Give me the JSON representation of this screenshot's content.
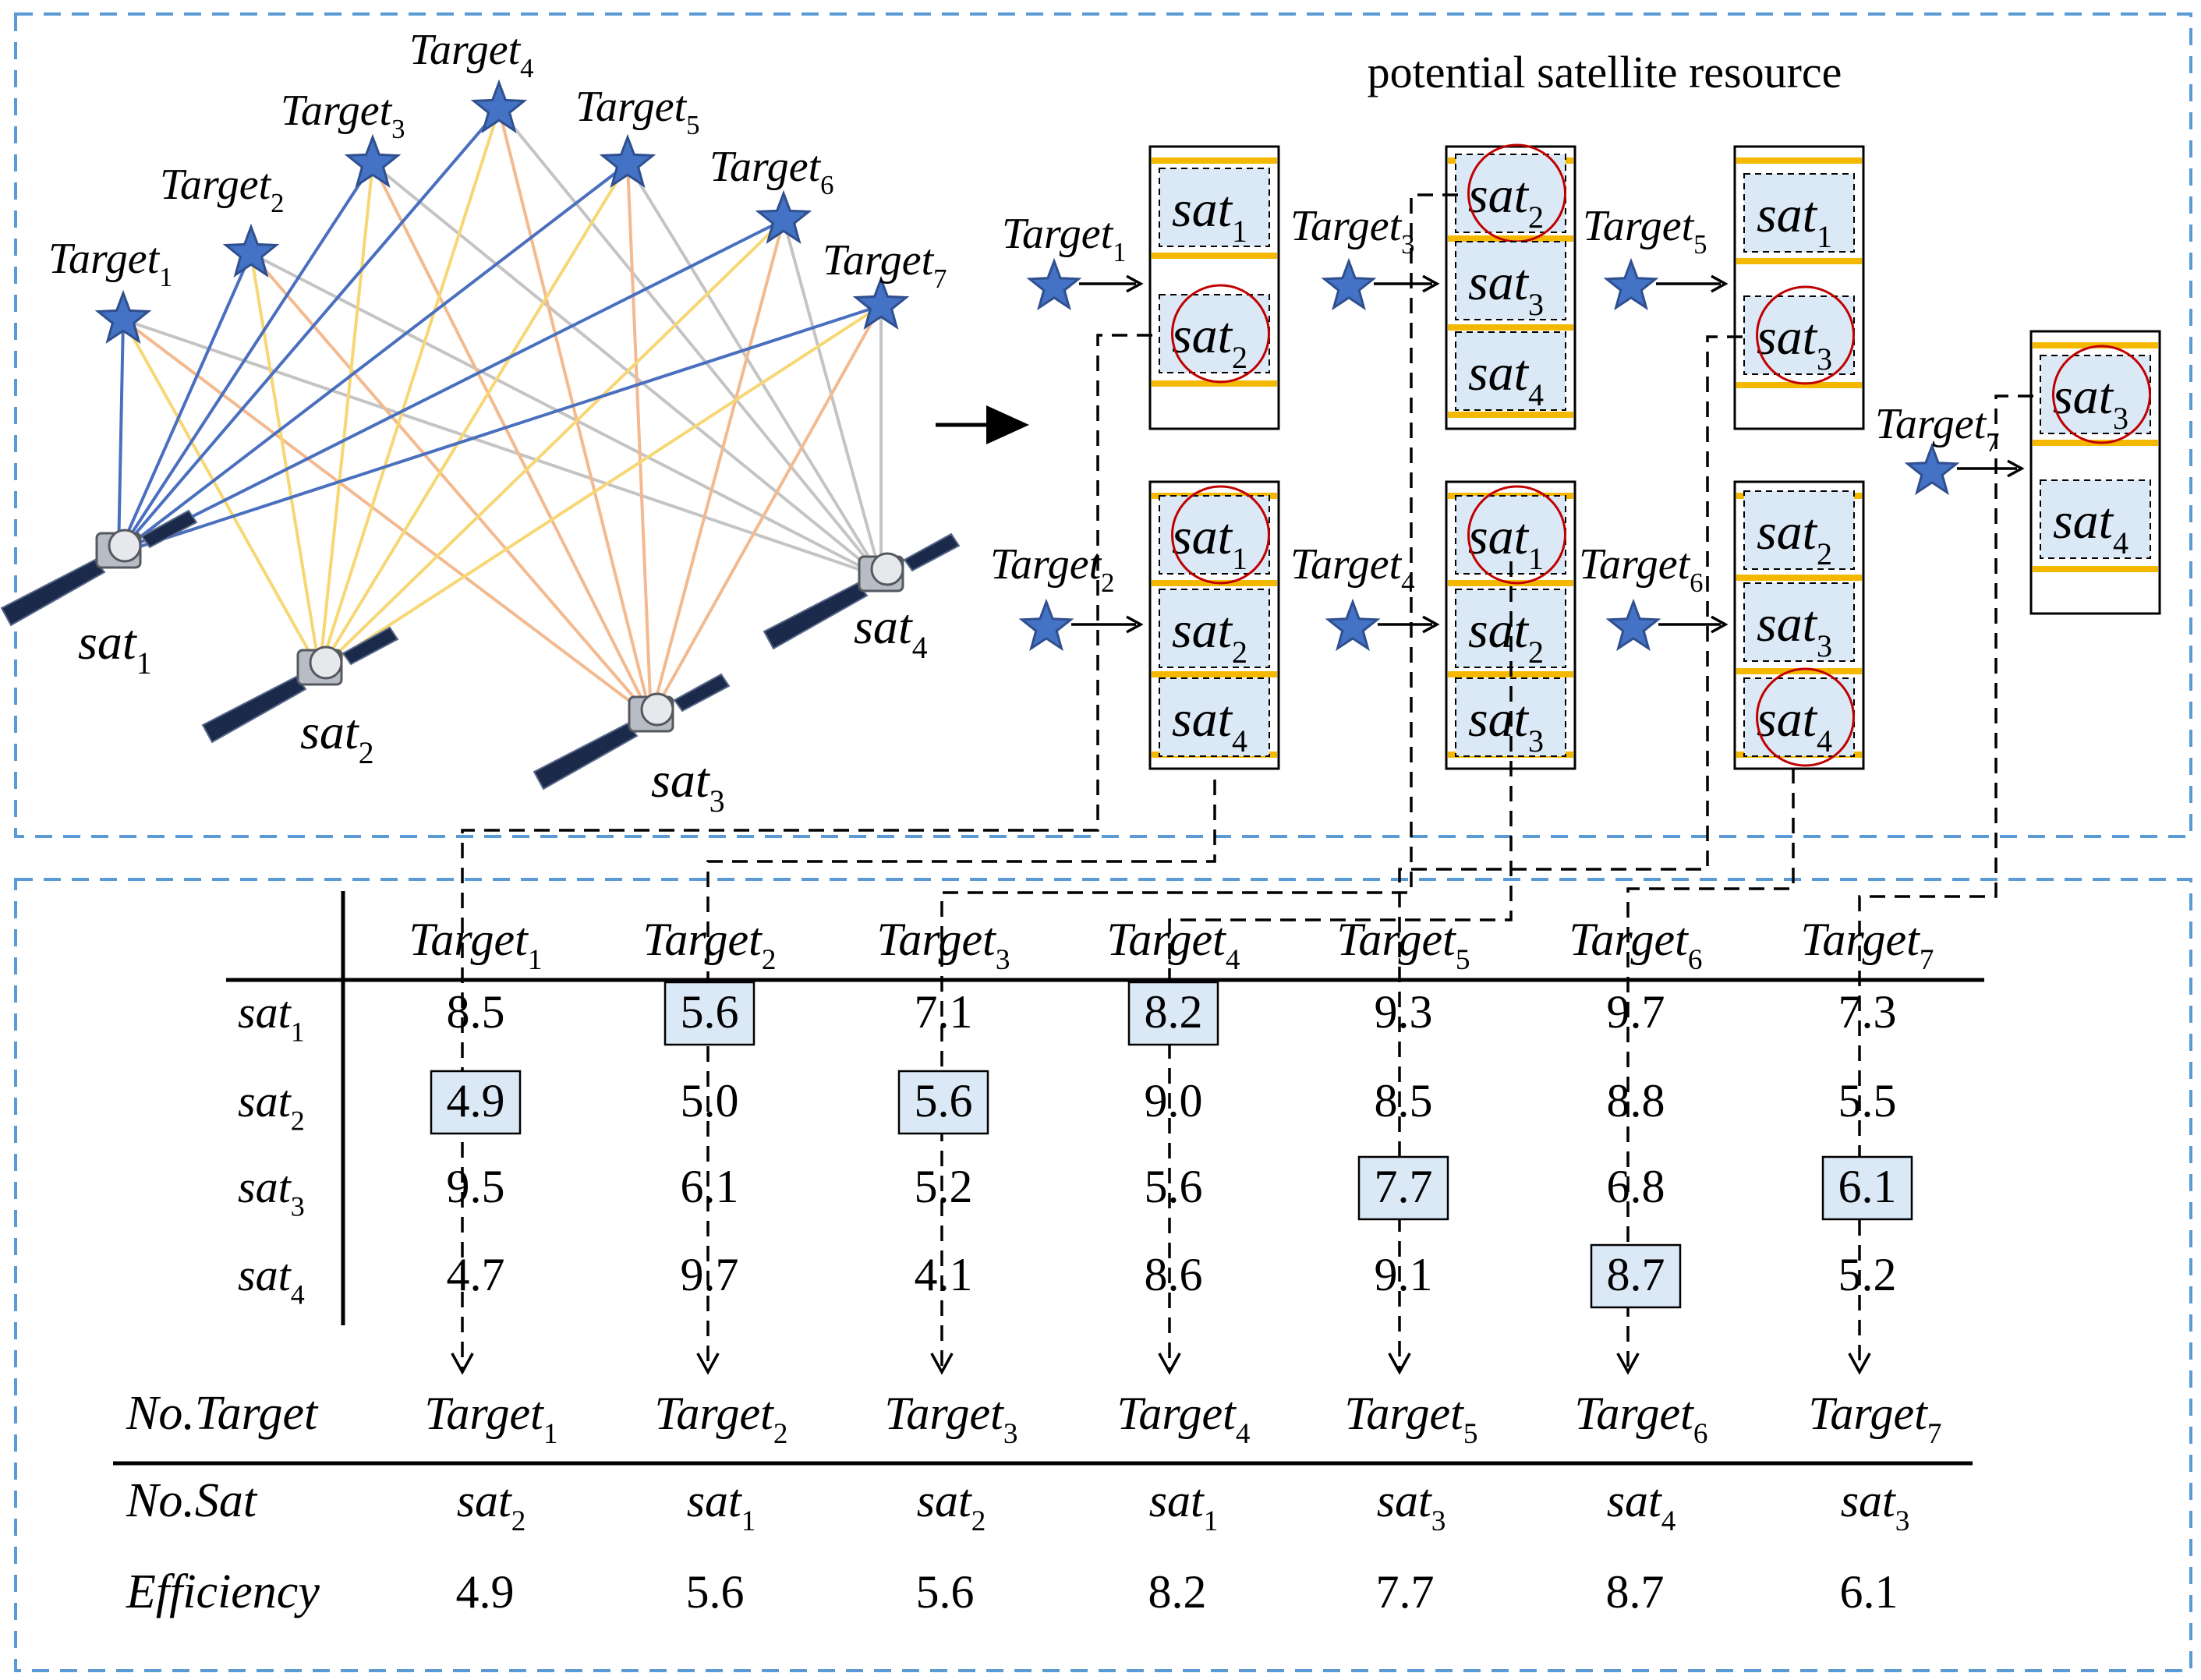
{
  "colors": {
    "panel_border": "#5b9bd5",
    "star_fill": "#4472c4",
    "star_stroke": "#2f4f8f",
    "line_blue": "#4a6fbf",
    "line_gold": "#f7d774",
    "line_peach": "#f3b98f",
    "line_gray": "#c4c4c4",
    "satbox_fill": "#dbe8f5",
    "gold_band": "#f5b800",
    "circle": "#c00000",
    "highlight_fill": "#dbe8f5"
  },
  "network": {
    "targets": [
      {
        "name": "Target",
        "sub": "1"
      },
      {
        "name": "Target",
        "sub": "2"
      },
      {
        "name": "Target",
        "sub": "3"
      },
      {
        "name": "Target",
        "sub": "4"
      },
      {
        "name": "Target",
        "sub": "5"
      },
      {
        "name": "Target",
        "sub": "6"
      },
      {
        "name": "Target",
        "sub": "7"
      }
    ],
    "satellites": [
      {
        "name": "sat",
        "sub": "1"
      },
      {
        "name": "sat",
        "sub": "2"
      },
      {
        "name": "sat",
        "sub": "3"
      },
      {
        "name": "sat",
        "sub": "4"
      }
    ]
  },
  "resource": {
    "title": "potential satellite resource",
    "groups": [
      {
        "target": {
          "name": "Target",
          "sub": "1"
        },
        "sats": [
          "1",
          "2"
        ],
        "selected": "2"
      },
      {
        "target": {
          "name": "Target",
          "sub": "2"
        },
        "sats": [
          "1",
          "2",
          "4"
        ],
        "selected": "1"
      },
      {
        "target": {
          "name": "Target",
          "sub": "3"
        },
        "sats": [
          "2",
          "3",
          "4"
        ],
        "selected": "2"
      },
      {
        "target": {
          "name": "Target",
          "sub": "4"
        },
        "sats": [
          "1",
          "2",
          "3"
        ],
        "selected": "1"
      },
      {
        "target": {
          "name": "Target",
          "sub": "5"
        },
        "sats": [
          "1",
          "3"
        ],
        "selected": "3"
      },
      {
        "target": {
          "name": "Target",
          "sub": "6"
        },
        "sats": [
          "2",
          "3",
          "4"
        ],
        "selected": "4"
      },
      {
        "target": {
          "name": "Target",
          "sub": "7"
        },
        "sats": [
          "3",
          "4"
        ],
        "selected": "3"
      }
    ]
  },
  "matrix": {
    "columns": [
      {
        "name": "Target",
        "sub": "1"
      },
      {
        "name": "Target",
        "sub": "2"
      },
      {
        "name": "Target",
        "sub": "3"
      },
      {
        "name": "Target",
        "sub": "4"
      },
      {
        "name": "Target",
        "sub": "5"
      },
      {
        "name": "Target",
        "sub": "6"
      },
      {
        "name": "Target",
        "sub": "7"
      }
    ],
    "rows": [
      {
        "name": "sat",
        "sub": "1",
        "values": [
          "8.5",
          "5.6",
          "7.1",
          "8.2",
          "9.3",
          "9.7",
          "7.3"
        ]
      },
      {
        "name": "sat",
        "sub": "2",
        "values": [
          "4.9",
          "5.0",
          "5.6",
          "9.0",
          "8.5",
          "8.8",
          "5.5"
        ]
      },
      {
        "name": "sat",
        "sub": "3",
        "values": [
          "9.5",
          "6.1",
          "5.2",
          "5.6",
          "7.7",
          "6.8",
          "6.1"
        ]
      },
      {
        "name": "sat",
        "sub": "4",
        "values": [
          "4.7",
          "9.7",
          "4.1",
          "8.6",
          "9.1",
          "8.7",
          "5.2"
        ]
      }
    ],
    "selected_row_index": [
      1,
      0,
      1,
      0,
      2,
      3,
      2
    ]
  },
  "result": {
    "labels": {
      "target": "No.Target",
      "sat": "No.Sat",
      "efficiency": "Efficiency"
    },
    "targets": [
      {
        "name": "Target",
        "sub": "1"
      },
      {
        "name": "Target",
        "sub": "2"
      },
      {
        "name": "Target",
        "sub": "3"
      },
      {
        "name": "Target",
        "sub": "4"
      },
      {
        "name": "Target",
        "sub": "5"
      },
      {
        "name": "Target",
        "sub": "6"
      },
      {
        "name": "Target",
        "sub": "7"
      }
    ],
    "sats": [
      {
        "name": "sat",
        "sub": "2"
      },
      {
        "name": "sat",
        "sub": "1"
      },
      {
        "name": "sat",
        "sub": "2"
      },
      {
        "name": "sat",
        "sub": "1"
      },
      {
        "name": "sat",
        "sub": "3"
      },
      {
        "name": "sat",
        "sub": "4"
      },
      {
        "name": "sat",
        "sub": "3"
      }
    ],
    "efficiency": [
      "4.9",
      "5.6",
      "5.6",
      "8.2",
      "7.7",
      "8.7",
      "6.1"
    ]
  }
}
